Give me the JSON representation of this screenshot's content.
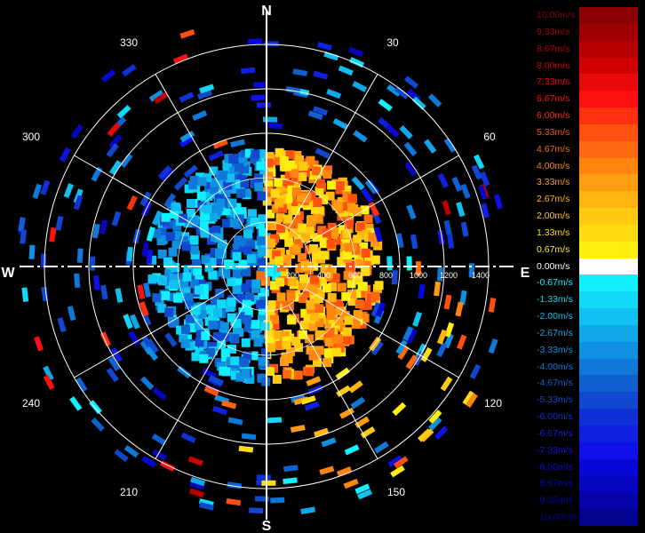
{
  "compass": {
    "north": "N",
    "east": "E",
    "south": "S",
    "west": "W"
  },
  "bearings": [
    "30",
    "60",
    "120",
    "150",
    "210",
    "240",
    "300",
    "330"
  ],
  "range_labels": [
    "200",
    "400",
    "600",
    "800",
    "1000",
    "1200",
    "1400"
  ],
  "legend": {
    "levels": [
      {
        "label": "10.00m/s",
        "color": "#8b0000"
      },
      {
        "label": "9.33m/s",
        "color": "#a00000"
      },
      {
        "label": "8.67m/s",
        "color": "#b80000"
      },
      {
        "label": "8.00m/s",
        "color": "#d00000"
      },
      {
        "label": "7.33m/s",
        "color": "#e80808"
      },
      {
        "label": "6.67m/s",
        "color": "#ff1010"
      },
      {
        "label": "6.00m/s",
        "color": "#ff3010"
      },
      {
        "label": "5.33m/s",
        "color": "#ff5010"
      },
      {
        "label": "4.67m/s",
        "color": "#ff6a10"
      },
      {
        "label": "4.00m/s",
        "color": "#ff8410"
      },
      {
        "label": "3.33m/s",
        "color": "#ff9c10"
      },
      {
        "label": "2.67m/s",
        "color": "#ffb410"
      },
      {
        "label": "2.00m/s",
        "color": "#ffca10"
      },
      {
        "label": "1.33m/s",
        "color": "#ffdc10"
      },
      {
        "label": "0.67m/s",
        "color": "#ffee10"
      },
      {
        "label": "0.00m/s",
        "color": "#ffffff"
      },
      {
        "label": "-0.67m/s",
        "color": "#10f0ff"
      },
      {
        "label": "-1.33m/s",
        "color": "#10d8f8"
      },
      {
        "label": "-2.00m/s",
        "color": "#10c0f0"
      },
      {
        "label": "-2.67m/s",
        "color": "#10a8e8"
      },
      {
        "label": "-3.33m/s",
        "color": "#1090e0"
      },
      {
        "label": "-4.00m/s",
        "color": "#1078d8"
      },
      {
        "label": "-4.67m/s",
        "color": "#1060d0"
      },
      {
        "label": "-5.33m/s",
        "color": "#1048d0"
      },
      {
        "label": "-6.00m/s",
        "color": "#1030d8"
      },
      {
        "label": "-6.67m/s",
        "color": "#1020e0"
      },
      {
        "label": "-7.33m/s",
        "color": "#1010e8"
      },
      {
        "label": "-8.00m/s",
        "color": "#0808d8"
      },
      {
        "label": "-8.67m/s",
        "color": "#0606c0"
      },
      {
        "label": "-9.33m/s",
        "color": "#0404a8"
      },
      {
        "label": "-10.00m/s",
        "color": "#020290"
      }
    ]
  },
  "colors": {
    "background": "#000000",
    "grid": "#ffffff",
    "approach": "#1090e0",
    "recede": "#ffb410"
  }
}
